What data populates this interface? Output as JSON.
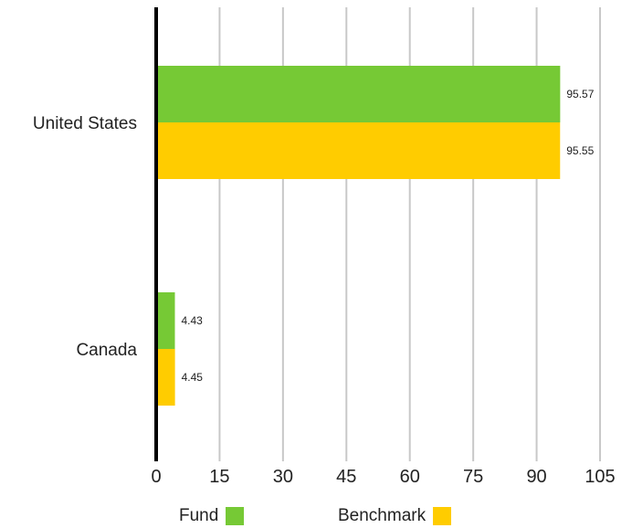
{
  "chart_data": {
    "type": "bar",
    "orientation": "horizontal",
    "categories": [
      "United States",
      "Canada"
    ],
    "series": [
      {
        "name": "Fund",
        "values": [
          95.57,
          4.43
        ],
        "color": "#76c935"
      },
      {
        "name": "Benchmark",
        "values": [
          95.55,
          4.45
        ],
        "color": "#ffcc00"
      }
    ],
    "data_labels": {
      "Fund": [
        "95.57",
        "4.43"
      ],
      "Benchmark": [
        "95.55",
        "4.45"
      ]
    },
    "x_ticks": [
      "0",
      "15",
      "30",
      "45",
      "60",
      "75",
      "90",
      "105"
    ],
    "xlim": [
      0,
      105
    ],
    "grid": "vertical",
    "legend_position": "bottom",
    "colors": {
      "grid": "#c8c8c8",
      "axis": "#000000",
      "text": "#222222"
    }
  }
}
